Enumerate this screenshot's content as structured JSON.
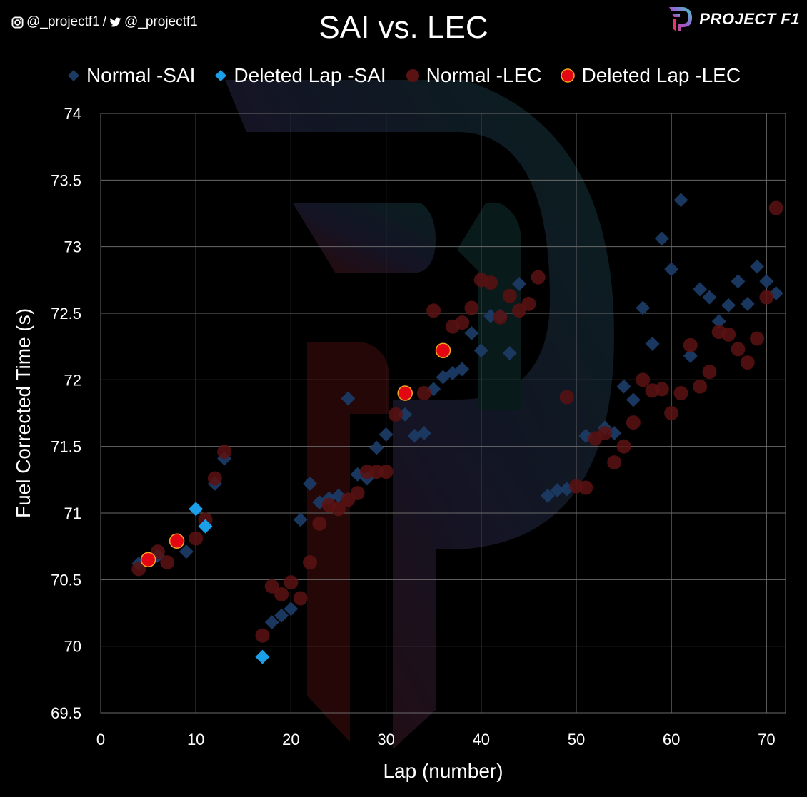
{
  "social": {
    "instagram_handle": "@_projectf1",
    "separator": "/",
    "twitter_handle": "@_projectf1"
  },
  "brand": {
    "name": "PROJECT F1"
  },
  "colors": {
    "background": "#000000",
    "grid": "#6a6a6a",
    "normal_sai": "#1b3a64",
    "deleted_sai": "#1a9fe8",
    "normal_lec": "#5a1212",
    "deleted_lec": "#e30613",
    "deleted_lec_edge": "#f5a623"
  },
  "chart_data": {
    "type": "scatter",
    "title": "SAI vs. LEC",
    "xlabel": "Lap (number)",
    "ylabel": "Fuel Corrected Time (s)",
    "xlim": [
      0,
      72
    ],
    "ylim": [
      69.5,
      74
    ],
    "x_ticks": [
      0,
      10,
      20,
      30,
      40,
      50,
      60,
      70
    ],
    "y_ticks": [
      69.5,
      70,
      70.5,
      71,
      71.5,
      72,
      72.5,
      73,
      73.5,
      74
    ],
    "grid": true,
    "legend_position": "top",
    "series": [
      {
        "name": "Normal -SAI",
        "marker": "diamond",
        "points": [
          [
            4,
            70.62
          ],
          [
            6,
            70.68
          ],
          [
            9,
            70.71
          ],
          [
            12,
            71.22
          ],
          [
            13,
            71.41
          ],
          [
            18,
            70.18
          ],
          [
            19,
            70.23
          ],
          [
            20,
            70.28
          ],
          [
            21,
            70.95
          ],
          [
            22,
            71.22
          ],
          [
            23,
            71.08
          ],
          [
            24,
            71.11
          ],
          [
            25,
            71.13
          ],
          [
            26,
            71.86
          ],
          [
            27,
            71.29
          ],
          [
            28,
            71.26
          ],
          [
            29,
            71.49
          ],
          [
            30,
            71.59
          ],
          [
            32,
            71.74
          ],
          [
            33,
            71.58
          ],
          [
            34,
            71.6
          ],
          [
            35,
            71.93
          ],
          [
            36,
            72.02
          ],
          [
            37,
            72.05
          ],
          [
            38,
            72.08
          ],
          [
            39,
            72.35
          ],
          [
            40,
            72.22
          ],
          [
            41,
            72.48
          ],
          [
            42,
            72.48
          ],
          [
            43,
            72.2
          ],
          [
            44,
            72.72
          ],
          [
            47,
            71.13
          ],
          [
            48,
            71.17
          ],
          [
            49,
            71.18
          ],
          [
            51,
            71.58
          ],
          [
            53,
            71.64
          ],
          [
            54,
            71.6
          ],
          [
            55,
            71.95
          ],
          [
            56,
            71.85
          ],
          [
            57,
            72.54
          ],
          [
            58,
            72.27
          ],
          [
            59,
            73.06
          ],
          [
            60,
            72.83
          ],
          [
            61,
            73.35
          ],
          [
            62,
            72.18
          ],
          [
            63,
            72.68
          ],
          [
            64,
            72.62
          ],
          [
            65,
            72.44
          ],
          [
            66,
            72.56
          ],
          [
            67,
            72.74
          ],
          [
            68,
            72.57
          ],
          [
            69,
            72.85
          ],
          [
            70,
            72.74
          ],
          [
            71,
            72.65
          ]
        ]
      },
      {
        "name": "Deleted Lap -SAI",
        "marker": "diamond",
        "points": [
          [
            10,
            71.03
          ],
          [
            11,
            70.9
          ],
          [
            17,
            69.92
          ]
        ]
      },
      {
        "name": "Normal -LEC",
        "marker": "circle",
        "points": [
          [
            4,
            70.58
          ],
          [
            6,
            70.71
          ],
          [
            7,
            70.63
          ],
          [
            10,
            70.81
          ],
          [
            11,
            70.95
          ],
          [
            12,
            71.26
          ],
          [
            13,
            71.46
          ],
          [
            17,
            70.08
          ],
          [
            18,
            70.45
          ],
          [
            19,
            70.39
          ],
          [
            20,
            70.48
          ],
          [
            21,
            70.36
          ],
          [
            22,
            70.63
          ],
          [
            23,
            70.92
          ],
          [
            24,
            71.06
          ],
          [
            25,
            71.03
          ],
          [
            26,
            71.1
          ],
          [
            27,
            71.15
          ],
          [
            28,
            71.31
          ],
          [
            29,
            71.31
          ],
          [
            30,
            71.31
          ],
          [
            31,
            71.74
          ],
          [
            34,
            71.9
          ],
          [
            35,
            72.52
          ],
          [
            37,
            72.4
          ],
          [
            38,
            72.43
          ],
          [
            39,
            72.54
          ],
          [
            40,
            72.75
          ],
          [
            41,
            72.73
          ],
          [
            42,
            72.47
          ],
          [
            43,
            72.63
          ],
          [
            44,
            72.52
          ],
          [
            45,
            72.57
          ],
          [
            46,
            72.77
          ],
          [
            49,
            71.87
          ],
          [
            50,
            71.2
          ],
          [
            51,
            71.19
          ],
          [
            52,
            71.56
          ],
          [
            53,
            71.6
          ],
          [
            54,
            71.38
          ],
          [
            55,
            71.5
          ],
          [
            56,
            71.68
          ],
          [
            57,
            72.0
          ],
          [
            58,
            71.92
          ],
          [
            59,
            71.93
          ],
          [
            60,
            71.75
          ],
          [
            61,
            71.9
          ],
          [
            62,
            72.26
          ],
          [
            63,
            71.95
          ],
          [
            64,
            72.06
          ],
          [
            65,
            72.36
          ],
          [
            66,
            72.34
          ],
          [
            67,
            72.23
          ],
          [
            68,
            72.13
          ],
          [
            69,
            72.31
          ],
          [
            70,
            72.62
          ],
          [
            71,
            73.29
          ]
        ]
      },
      {
        "name": "Deleted Lap -LEC",
        "marker": "circle",
        "points": [
          [
            5,
            70.65
          ],
          [
            8,
            70.79
          ],
          [
            32,
            71.9
          ],
          [
            36,
            72.22
          ]
        ]
      }
    ]
  }
}
